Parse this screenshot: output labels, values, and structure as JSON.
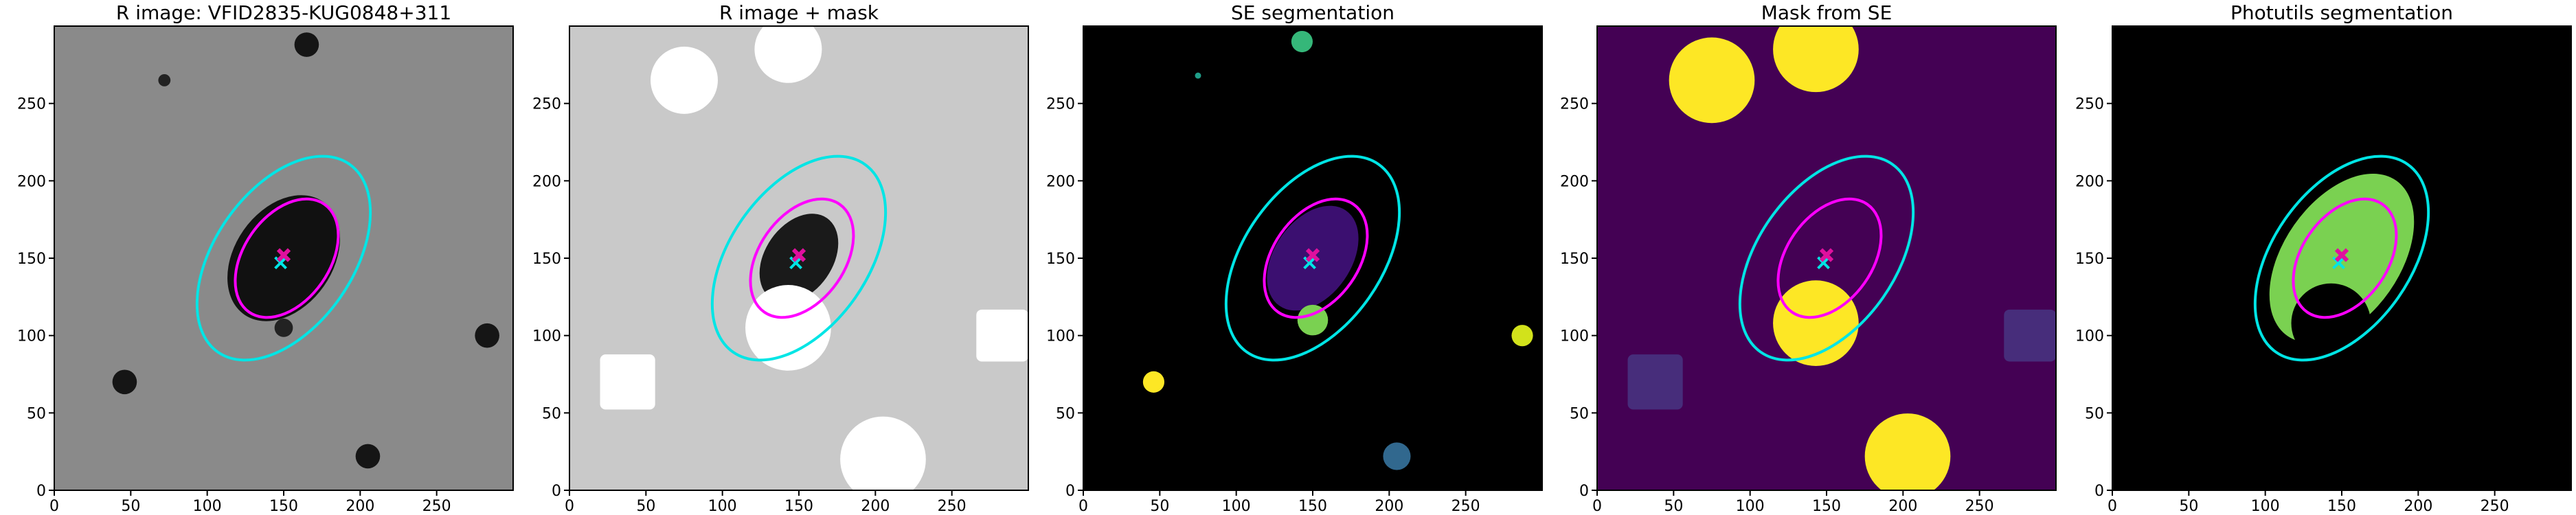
{
  "chart_data": [
    {
      "type": "image",
      "title": "R image: VFID2835-KUG0848+311",
      "xlim": [
        0,
        300
      ],
      "ylim": [
        0,
        300
      ],
      "xticks": [
        0,
        50,
        100,
        150,
        200,
        250
      ],
      "yticks": [
        0,
        50,
        100,
        150,
        200,
        250
      ]
    },
    {
      "type": "image",
      "title": "R image + mask",
      "xlim": [
        0,
        300
      ],
      "ylim": [
        0,
        300
      ],
      "xticks": [
        0,
        50,
        100,
        150,
        200,
        250
      ],
      "yticks": [
        0,
        50,
        100,
        150,
        200,
        250
      ]
    },
    {
      "type": "image",
      "title": "SE segmentation",
      "xlim": [
        0,
        300
      ],
      "ylim": [
        0,
        300
      ],
      "xticks": [
        0,
        50,
        100,
        150,
        200,
        250
      ],
      "yticks": [
        0,
        50,
        100,
        150,
        200,
        250
      ]
    },
    {
      "type": "image",
      "title": "Mask from SE",
      "xlim": [
        0,
        300
      ],
      "ylim": [
        0,
        300
      ],
      "xticks": [
        0,
        50,
        100,
        150,
        200,
        250
      ],
      "yticks": [
        0,
        50,
        100,
        150,
        200,
        250
      ]
    },
    {
      "type": "image",
      "title": "Photutils segmentation",
      "xlim": [
        0,
        300
      ],
      "ylim": [
        0,
        300
      ],
      "xticks": [
        0,
        50,
        100,
        150,
        200,
        250
      ],
      "yticks": [
        0,
        50,
        100,
        150,
        200,
        250
      ]
    }
  ]
}
